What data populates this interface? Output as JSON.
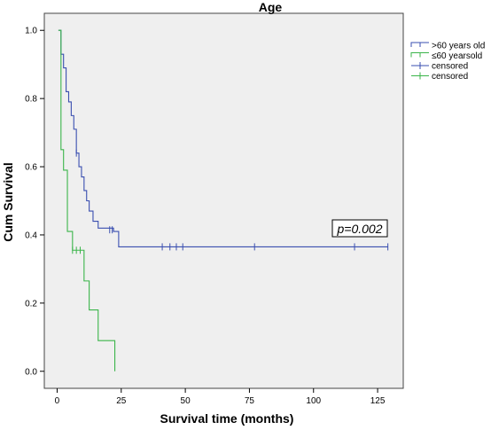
{
  "chart_data": {
    "type": "line",
    "title": "Age",
    "xlabel": "Survival time (months)",
    "ylabel": "Cum Survival",
    "xlim": [
      -5,
      135
    ],
    "ylim": [
      -0.05,
      1.05
    ],
    "xticks": [
      0,
      25,
      50,
      75,
      100,
      125
    ],
    "yticks": [
      0.0,
      0.2,
      0.4,
      0.6,
      0.8,
      1.0
    ],
    "ytick_labels": [
      "0.0",
      "0.2",
      "0.4",
      "0.6",
      "0.8",
      "1.0"
    ],
    "grid": false,
    "legend_position": "outside-right-top",
    "annotation": "p=0.002",
    "series": [
      {
        "name": ">60 years old",
        "color": "#3a4fb0",
        "step": true,
        "x": [
          0.5,
          1.5,
          2.5,
          3.5,
          4.5,
          5.5,
          6.5,
          7.5,
          8.5,
          9.5,
          10.5,
          11.5,
          12.5,
          14,
          16,
          18,
          22,
          24,
          129
        ],
        "y": [
          1.0,
          0.93,
          0.89,
          0.82,
          0.79,
          0.75,
          0.71,
          0.64,
          0.6,
          0.57,
          0.53,
          0.5,
          0.47,
          0.44,
          0.42,
          0.42,
          0.41,
          0.365,
          0.365
        ],
        "censored_x": [
          7.5,
          20.5,
          21.5,
          41,
          44,
          46.5,
          49,
          77,
          116,
          129
        ],
        "censored_y": [
          0.64,
          0.415,
          0.415,
          0.365,
          0.365,
          0.365,
          0.365,
          0.365,
          0.365,
          0.365
        ]
      },
      {
        "name": "≤60 yearsold",
        "color": "#3bb54a",
        "step": true,
        "x": [
          0.5,
          1.5,
          2.5,
          4,
          6,
          9,
          10.5,
          12.5,
          16,
          22,
          22.5
        ],
        "y": [
          1.0,
          0.65,
          0.59,
          0.41,
          0.355,
          0.355,
          0.265,
          0.18,
          0.09,
          0.09,
          0.0
        ],
        "censored_x": [
          6,
          7.5,
          9
        ],
        "censored_y": [
          0.355,
          0.355,
          0.355
        ]
      }
    ],
    "legend": [
      {
        "label": ">60 years old",
        "kind": "line",
        "color": "#3a4fb0"
      },
      {
        "label": "≤60 yearsold",
        "kind": "line",
        "color": "#3bb54a"
      },
      {
        "label": "censored",
        "kind": "censor",
        "color": "#3a4fb0"
      },
      {
        "label": "censored",
        "kind": "censor",
        "color": "#3bb54a"
      }
    ]
  }
}
